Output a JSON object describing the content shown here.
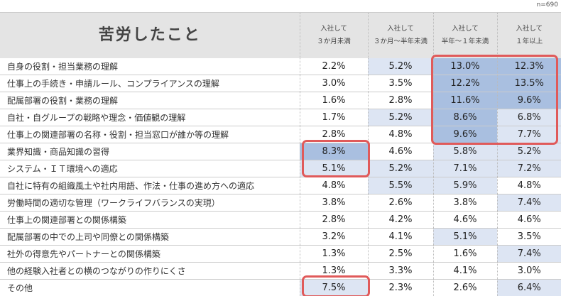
{
  "n_label": "n=690",
  "title": "苦労したこと",
  "columns": [
    "入社して\n３か月未満",
    "入社して\n３か月～半年未満",
    "入社して\n半年～１年未満",
    "入社して\n１年以上"
  ],
  "rows": [
    {
      "label": "自身の役割・担当業務の理解",
      "values": [
        "2.2%",
        "5.2%",
        "13.0%",
        "12.3%"
      ]
    },
    {
      "label": "仕事上の手続き・申請ルール、コンプライアンスの理解",
      "values": [
        "3.0%",
        "3.5%",
        "12.2%",
        "13.5%"
      ]
    },
    {
      "label": "配属部署の役割・業務の理解",
      "values": [
        "1.6%",
        "2.8%",
        "11.6%",
        "9.6%"
      ]
    },
    {
      "label": "自社・自グループの戦略や理念・価値観の理解",
      "values": [
        "1.7%",
        "5.2%",
        "8.6%",
        "6.8%"
      ]
    },
    {
      "label": "仕事上の関連部署の名称・役割・担当窓口が誰か等の理解",
      "values": [
        "2.8%",
        "4.8%",
        "9.6%",
        "7.7%"
      ]
    },
    {
      "label": "業界知識・商品知識の習得",
      "values": [
        "8.3%",
        "4.6%",
        "5.8%",
        "5.2%"
      ]
    },
    {
      "label": "システム・ＩＴ環境への適応",
      "values": [
        "5.1%",
        "5.2%",
        "7.1%",
        "7.2%"
      ]
    },
    {
      "label": "自社に特有の組織風土や社内用語、作法・仕事の進め方への適応",
      "values": [
        "4.8%",
        "5.5%",
        "5.9%",
        "4.8%"
      ]
    },
    {
      "label": "労働時間の適切な管理（ワークライフバランスの実現）",
      "values": [
        "3.8%",
        "2.6%",
        "3.8%",
        "7.4%"
      ]
    },
    {
      "label": "仕事上の関連部署との関係構築",
      "values": [
        "2.8%",
        "4.2%",
        "4.6%",
        "4.6%"
      ]
    },
    {
      "label": "配属部署の中での上司や同僚との関係構築",
      "values": [
        "3.2%",
        "4.1%",
        "5.1%",
        "3.5%"
      ]
    },
    {
      "label": "社外の得意先やパートナーとの関係構築",
      "values": [
        "1.3%",
        "2.5%",
        "1.6%",
        "7.4%"
      ]
    },
    {
      "label": "他の経験入社者との横のつながりの作りにくさ",
      "values": [
        "1.3%",
        "3.3%",
        "4.1%",
        "3.0%"
      ]
    },
    {
      "label": "その他",
      "values": [
        "7.5%",
        "2.3%",
        "2.6%",
        "6.4%"
      ]
    }
  ],
  "colors": {
    "high": "#a9bfe0",
    "mid": "#dde5f3",
    "highlight_border": "#e05a5a",
    "header_bg": "#e4e4e4"
  }
}
